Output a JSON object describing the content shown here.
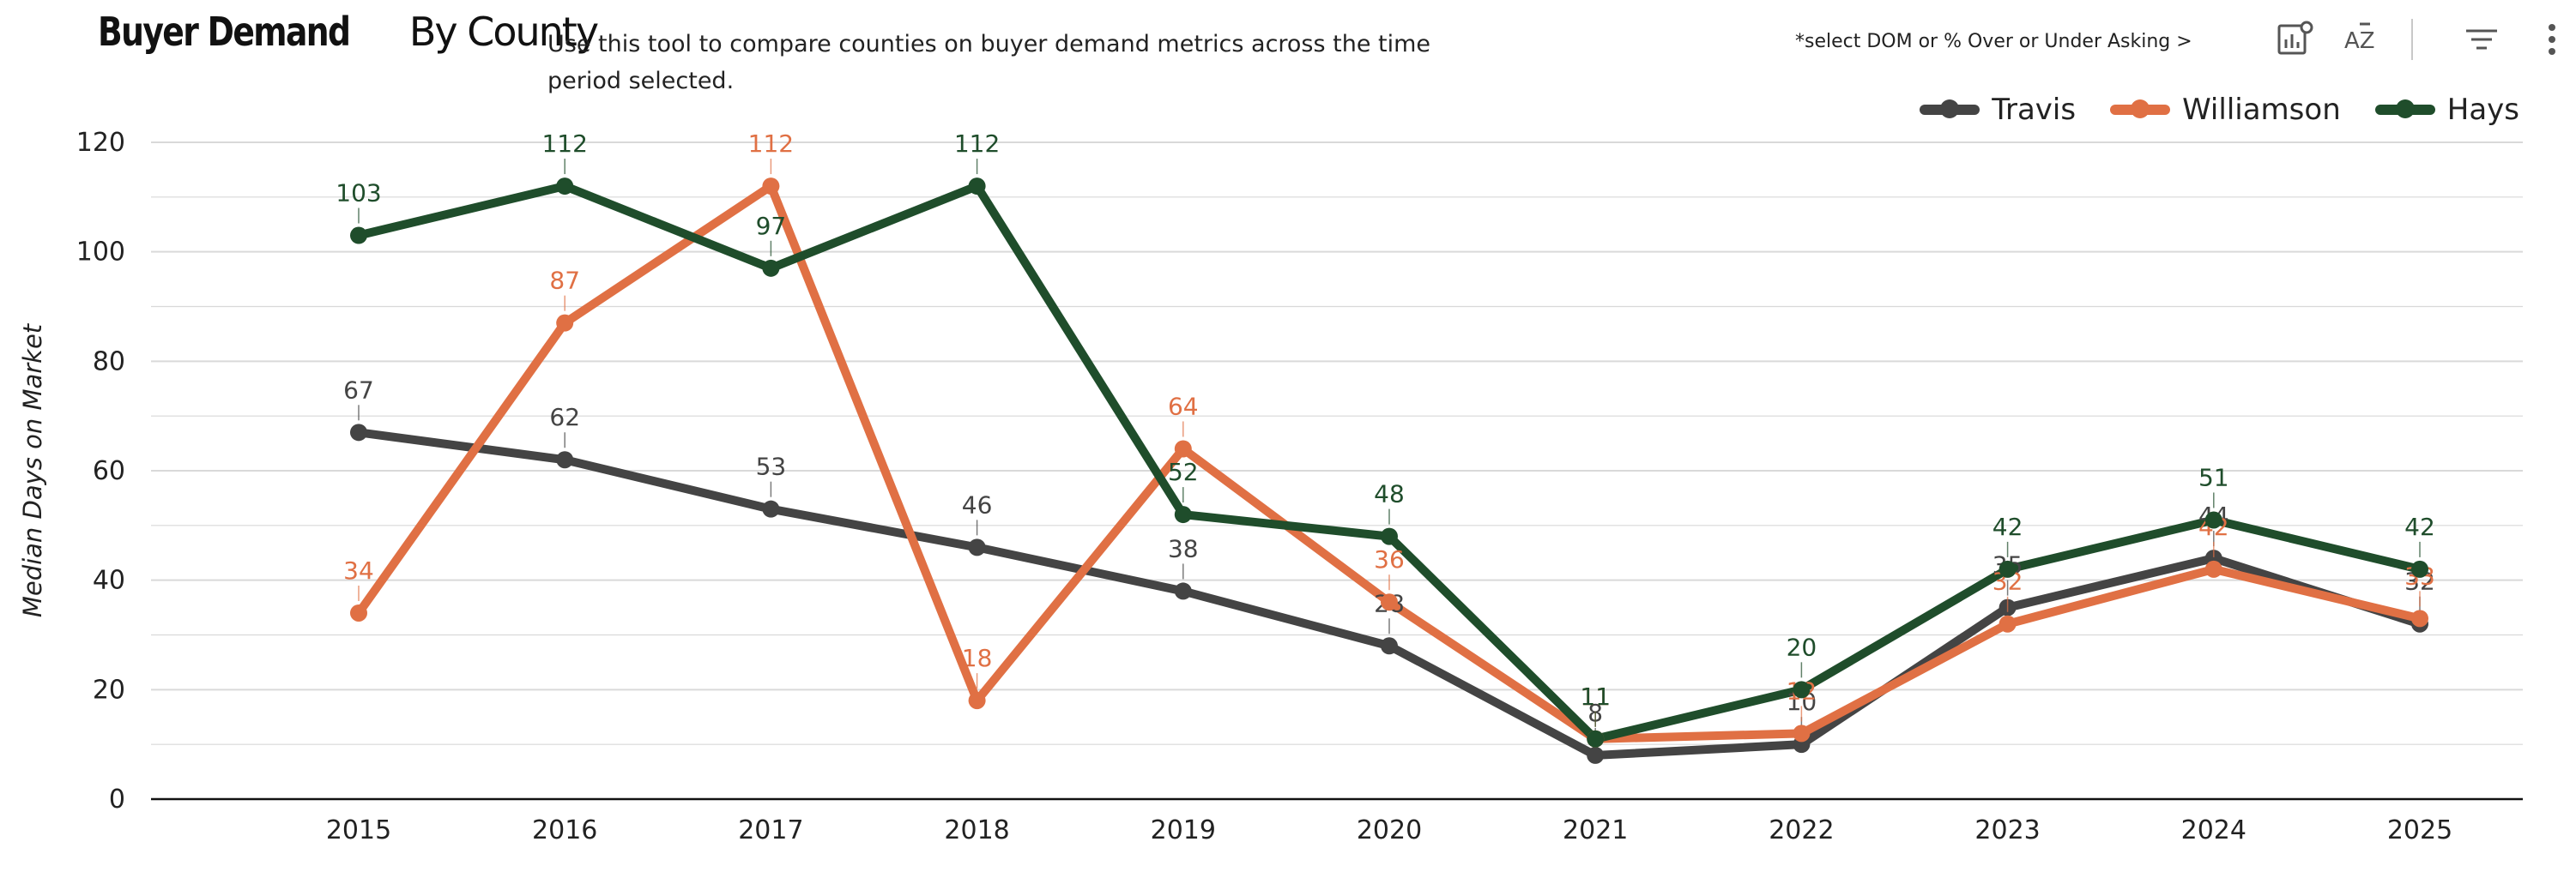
{
  "header": {
    "title_bold": "Buyer Demand",
    "title_rest": "By County",
    "description": "Use this tool to compare counties on buyer demand metrics across the time period selected.",
    "hint": "*select DOM or % Over or Under Asking >"
  },
  "toolbar": {
    "icons": [
      "chart-settings-icon",
      "sort-az-icon",
      "filter-icon",
      "more-options-icon"
    ],
    "sort_label": "AZ"
  },
  "colors": {
    "travis": "#444444",
    "williamson": "#E07044",
    "hays": "#1F4D2B",
    "grid": "#d9d9d9",
    "axis": "#111111"
  },
  "chart_data": {
    "type": "line",
    "title": "Buyer Demand By County",
    "xlabel": "",
    "ylabel": "Median Days on Market",
    "categories": [
      "2015",
      "2016",
      "2017",
      "2018",
      "2019",
      "2020",
      "2021",
      "2022",
      "2023",
      "2024",
      "2025"
    ],
    "ylim": [
      0,
      120
    ],
    "yticks": [
      0,
      20,
      40,
      60,
      80,
      100,
      120
    ],
    "grid": true,
    "legend_position": "top-right",
    "series": [
      {
        "name": "Travis",
        "color": "#444444",
        "values": [
          67,
          62,
          53,
          46,
          38,
          28,
          8,
          10,
          35,
          44,
          32
        ]
      },
      {
        "name": "Williamson",
        "color": "#E07044",
        "values": [
          34,
          87,
          112,
          18,
          64,
          36,
          11,
          12,
          32,
          42,
          33
        ]
      },
      {
        "name": "Hays",
        "color": "#1F4D2B",
        "values": [
          103,
          112,
          97,
          112,
          52,
          48,
          11,
          20,
          42,
          51,
          42
        ]
      }
    ]
  }
}
